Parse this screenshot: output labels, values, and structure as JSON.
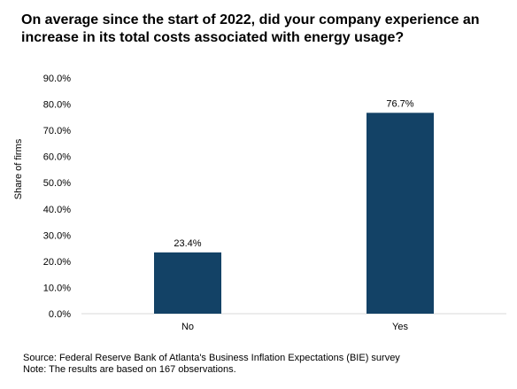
{
  "chart_data": {
    "type": "bar",
    "title": "On average since the start of 2022, did your company experience an increase in its total costs associated with energy usage?",
    "xlabel": "",
    "ylabel": "Share of firms",
    "categories": [
      "No",
      "Yes"
    ],
    "values": [
      23.4,
      76.7
    ],
    "value_labels": [
      "23.4%",
      "76.7%"
    ],
    "ylim": [
      0,
      90
    ],
    "yticks": [
      0,
      10,
      20,
      30,
      40,
      50,
      60,
      70,
      80,
      90
    ],
    "ytick_labels": [
      "0.0%",
      "10.0%",
      "20.0%",
      "30.0%",
      "40.0%",
      "50.0%",
      "60.0%",
      "70.0%",
      "80.0%",
      "90.0%"
    ],
    "bar_color": "#134266",
    "grid": false,
    "legend": "none"
  },
  "footer": {
    "source": "Source: Federal Reserve Bank of Atlanta's Business Inflation Expectations (BIE) survey",
    "note": "Note: The results are based on 167 observations."
  }
}
